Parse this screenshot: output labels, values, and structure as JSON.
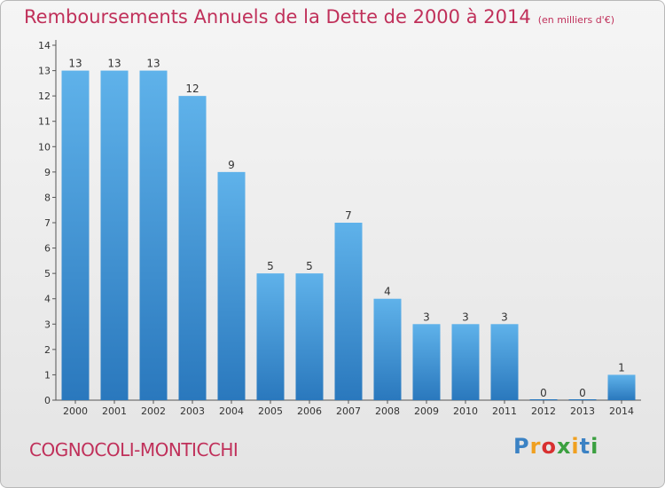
{
  "header": {
    "title": "Remboursements Annuels de la Dette de 2000 à 2014",
    "unit": "(en milliers d'€)"
  },
  "footer": {
    "commune": "COGNOCOLI-MONTICCHI",
    "logo_letters": [
      "P",
      "r",
      "o",
      "x",
      "i",
      "t",
      "i"
    ]
  },
  "colors": {
    "title": "#c0305a",
    "bar_top": "#5aaee8",
    "bar_bottom": "#2e7cc0"
  },
  "chart_data": {
    "type": "bar",
    "title": "Remboursements Annuels de la Dette de 2000 à 2014",
    "xlabel": "",
    "ylabel": "",
    "categories": [
      "2000",
      "2001",
      "2002",
      "2003",
      "2004",
      "2005",
      "2006",
      "2007",
      "2008",
      "2009",
      "2010",
      "2011",
      "2012",
      "2013",
      "2014"
    ],
    "values": [
      13,
      13,
      13,
      12,
      9,
      5,
      5,
      7,
      4,
      3,
      3,
      3,
      0,
      0,
      1
    ],
    "data_labels": [
      "13",
      "13",
      "13",
      "12",
      "9",
      "5",
      "5",
      "7",
      "4",
      "3",
      "3",
      "3",
      "0",
      "0",
      "1"
    ],
    "ylim": [
      0,
      14
    ],
    "yticks": [
      "0",
      "1",
      "2",
      "3",
      "4",
      "5",
      "6",
      "7",
      "8",
      "9",
      "10",
      "11",
      "12",
      "13",
      "14"
    ],
    "grid": false,
    "legend": "none"
  }
}
